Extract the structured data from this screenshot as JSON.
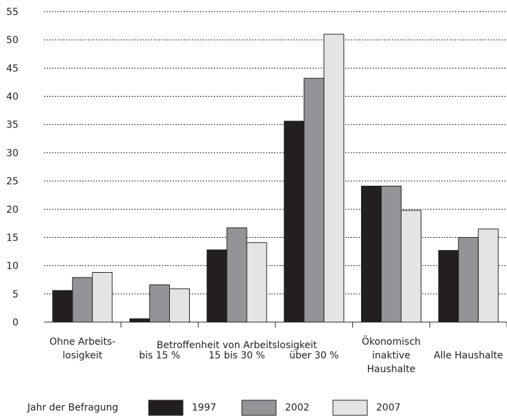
{
  "chart_data": {
    "type": "bar",
    "ylim": [
      0,
      55
    ],
    "yticks": [
      0,
      5,
      10,
      15,
      20,
      25,
      30,
      35,
      40,
      45,
      50,
      55
    ],
    "grid": true,
    "categories": [
      [
        "Ohne Arbeits-",
        "losigkeit"
      ],
      [
        "bis 15 %"
      ],
      [
        "15 bis 30 %"
      ],
      [
        "über 30 %"
      ],
      [
        "Ökonomisch",
        "inaktive",
        "Haushalte"
      ],
      [
        "Alle Haushalte"
      ]
    ],
    "group_label": "Betroffenheit von Arbeitslosigkeit",
    "legend_title": "Jahr der Befragung",
    "legend_position": "bottom",
    "series": [
      {
        "name": "1997",
        "color": "#231f20",
        "values": [
          5.6,
          0.6,
          12.8,
          35.6,
          24.1,
          12.7
        ]
      },
      {
        "name": "2002",
        "color": "#929497",
        "values": [
          7.9,
          6.6,
          16.7,
          43.2,
          24.1,
          15.0
        ]
      },
      {
        "name": "2007",
        "color": "#e3e4e5",
        "values": [
          8.8,
          5.9,
          14.1,
          51.0,
          19.8,
          16.5
        ]
      }
    ]
  }
}
